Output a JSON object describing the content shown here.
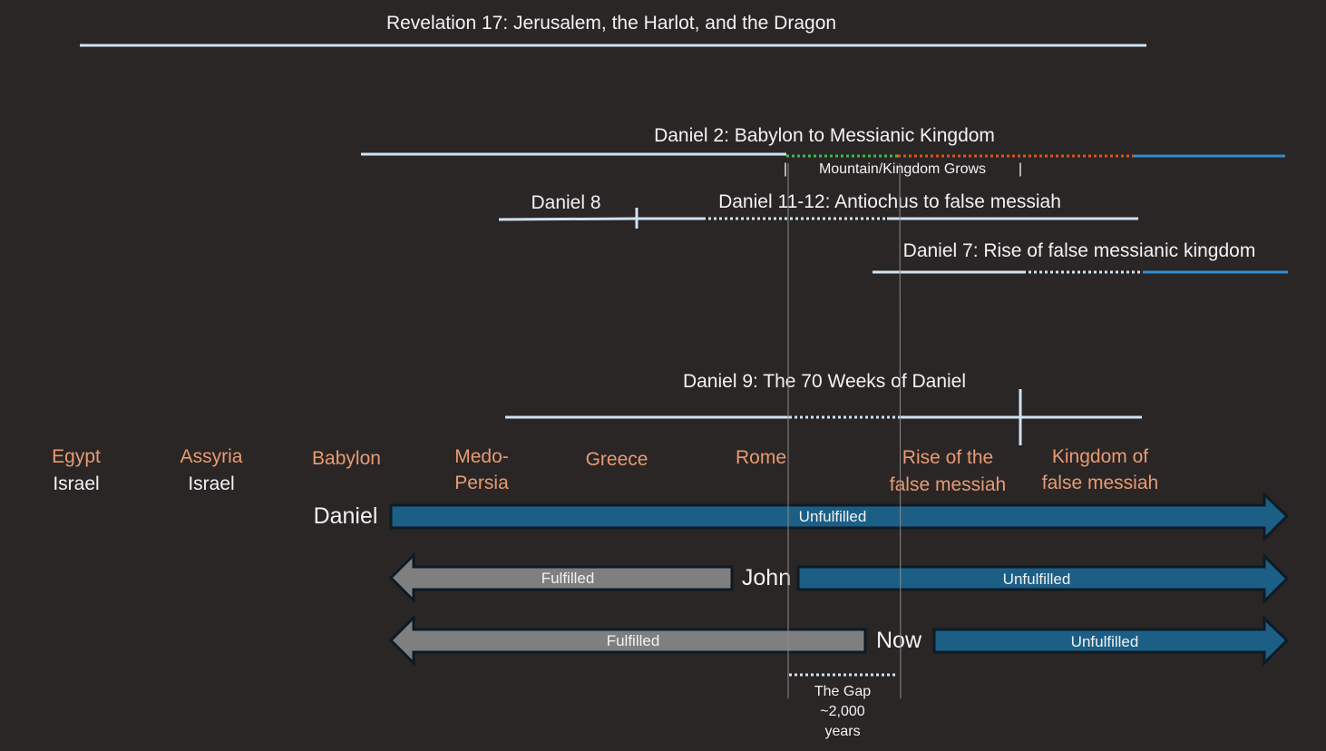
{
  "colors": {
    "background": "#2a2626",
    "light_line": "#cfe3f3",
    "blue_line": "#2e8ed1",
    "green_dots": "#3dbb4a",
    "orange_dots": "#d9541c",
    "empire_text": "#e89a72",
    "white_text": "#f2f2f2",
    "fulfilled_fill": "#7f7f7f",
    "unfulfilled_fill": "#1c5f86",
    "arrow_outline": "#0e1a24",
    "guide_line": "#8a8a8a"
  },
  "titles": {
    "revelation17": "Revelation 17: Jerusalem, the Harlot, and the Dragon",
    "daniel2": "Daniel 2: Babylon to Messianic Kingdom",
    "daniel2_sub_left": "|",
    "daniel2_sub": "Mountain/Kingdom Grows",
    "daniel2_sub_right": "|",
    "daniel8": "Daniel 8",
    "daniel11_12": "Daniel 11-12: Antiochus to false messiah",
    "daniel7": "Daniel 7: Rise of false messianic kingdom",
    "daniel9": "Daniel 9: The 70 Weeks of Daniel"
  },
  "kingdoms": [
    {
      "line1": "Egypt",
      "line2": "Israel"
    },
    {
      "line1": "Assyria",
      "line2": "Israel"
    },
    {
      "line1": "Babylon",
      "line2": ""
    },
    {
      "line1": "Medo-",
      "line2": "Persia"
    },
    {
      "line1": "Greece",
      "line2": ""
    },
    {
      "line1": "Rome",
      "line2": ""
    },
    {
      "line1": "Rise of the",
      "line2": "false messiah"
    },
    {
      "line1": "Kingdom of",
      "line2": "false messiah"
    }
  ],
  "perspectives": [
    {
      "label": "Daniel",
      "fulfilled": "",
      "unfulfilled": "Unfulfilled"
    },
    {
      "label": "John",
      "fulfilled": "Fulfilled",
      "unfulfilled": "Unfulfilled"
    },
    {
      "label": "Now",
      "fulfilled": "Fulfilled",
      "unfulfilled": "Unfulfilled"
    }
  ],
  "gap": {
    "line1": "The Gap",
    "line2": "~2,000",
    "line3": "years"
  }
}
